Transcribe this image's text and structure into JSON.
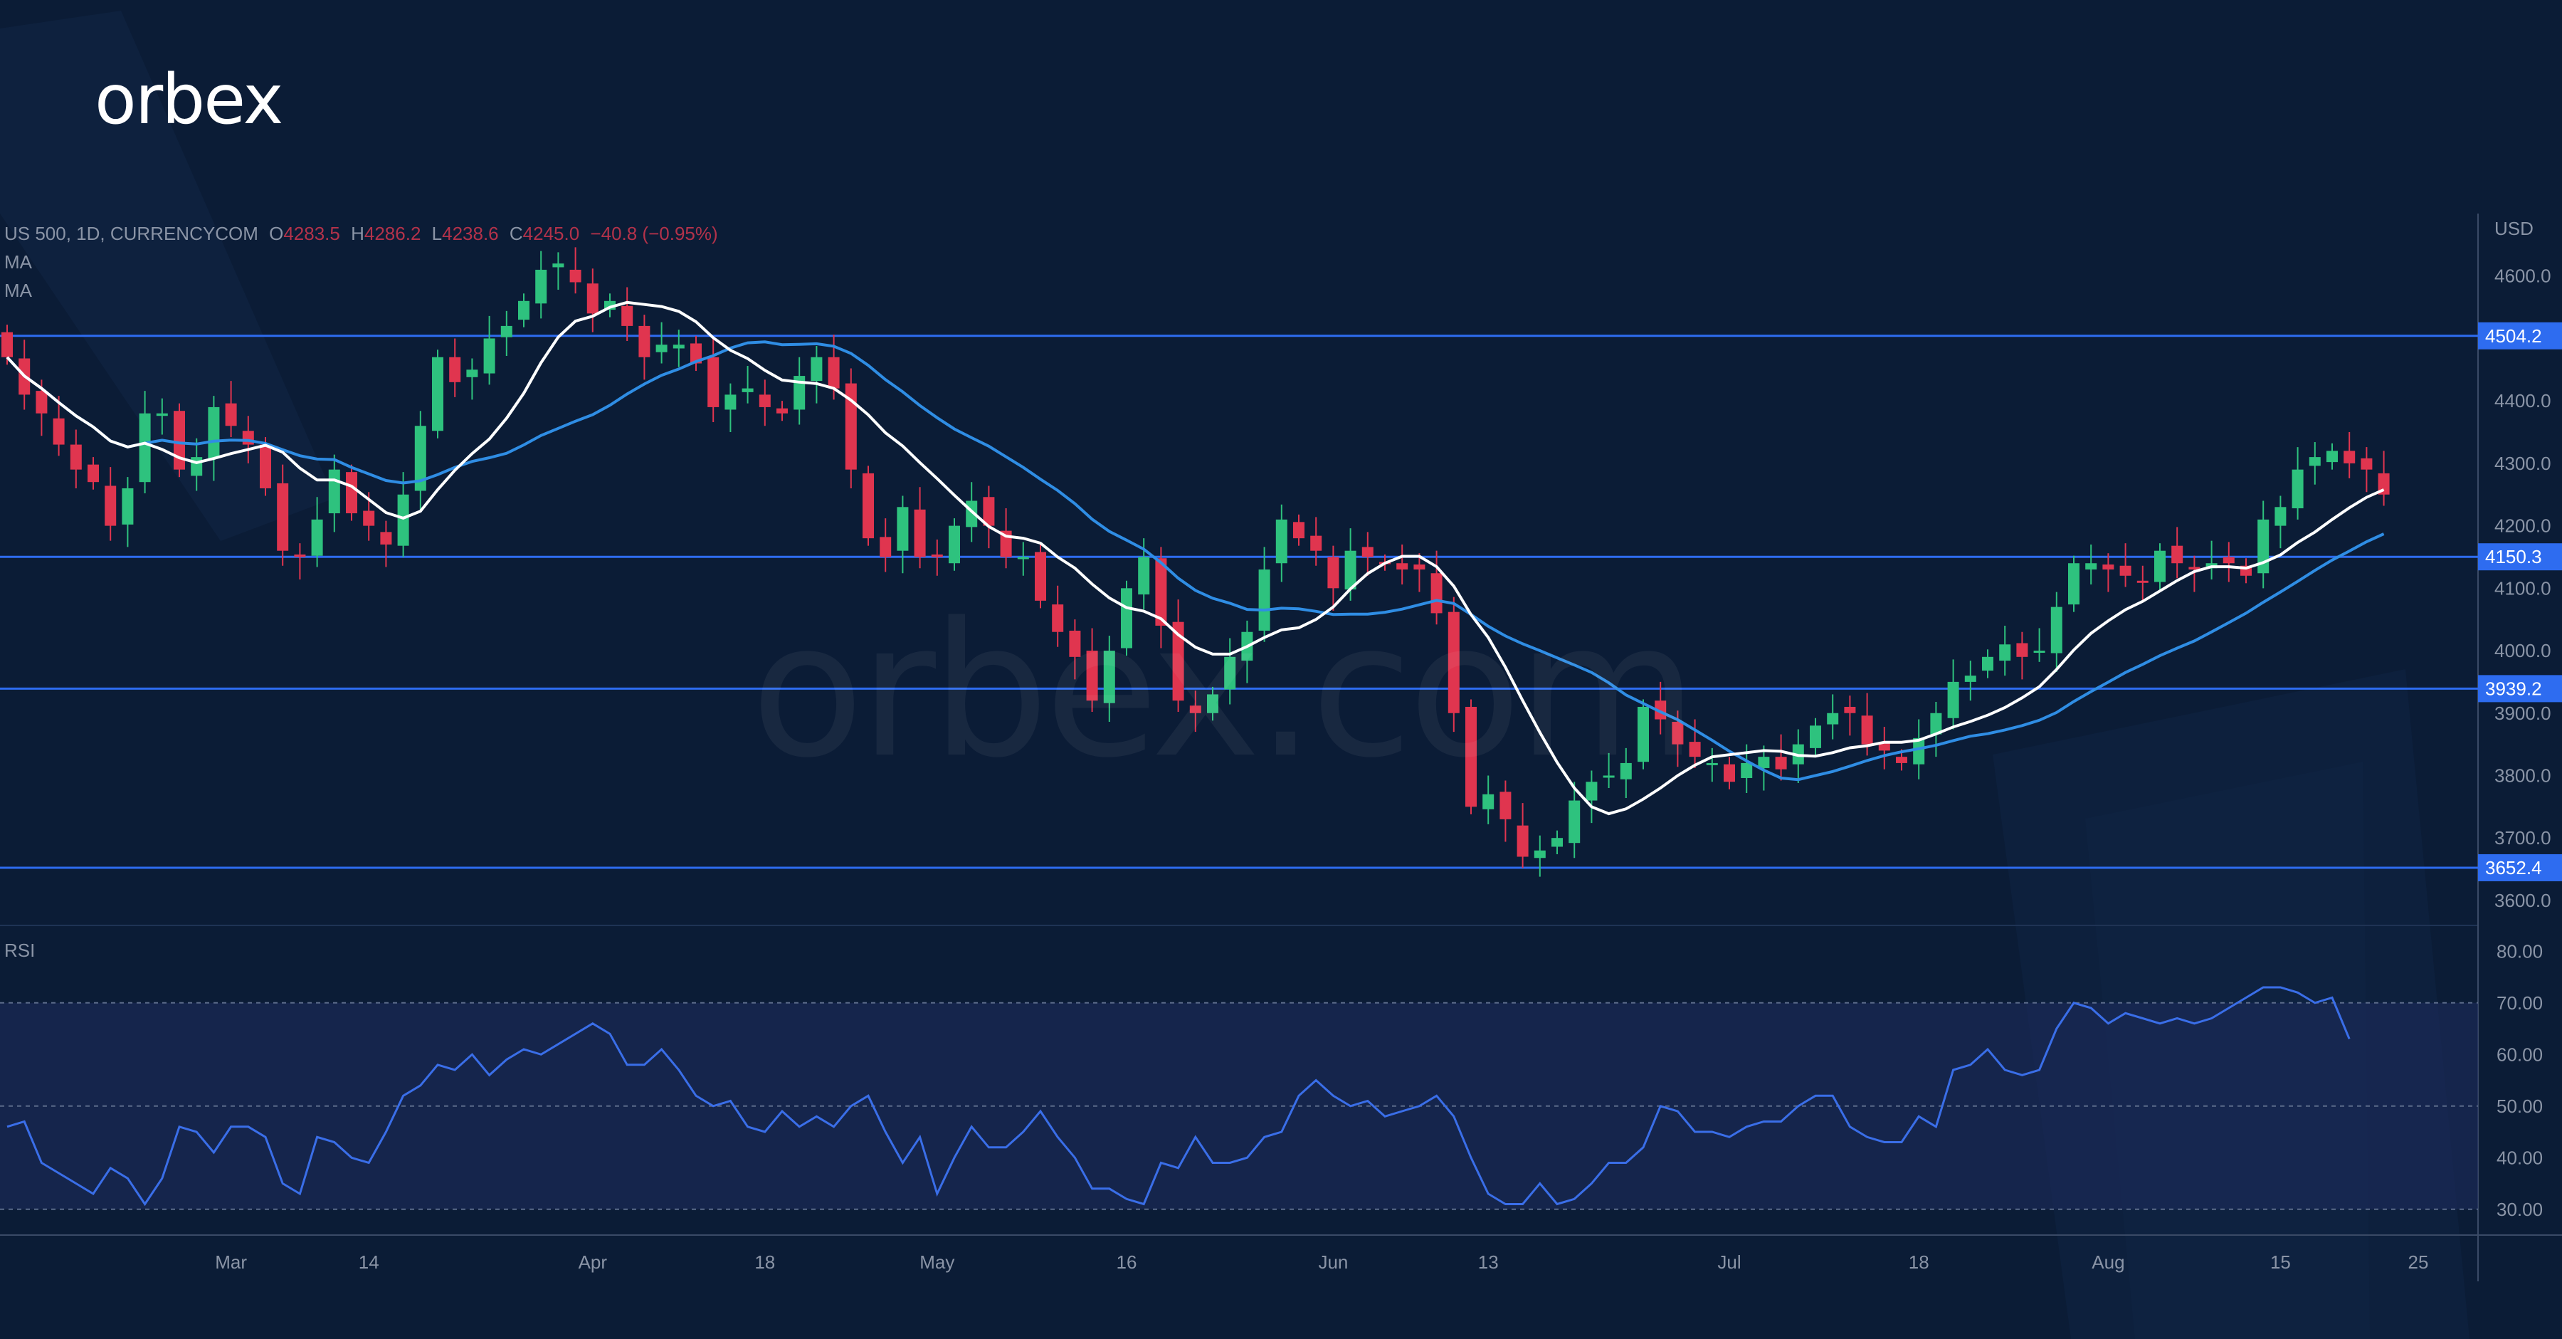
{
  "brand": {
    "logo_text": "orbex",
    "watermark": "orbex.com"
  },
  "legend": {
    "symbol": "US 500, 1D, CURRENCYCOM",
    "open_label": "O",
    "open": "4283.5",
    "high_label": "H",
    "high": "4286.2",
    "low_label": "L",
    "low": "4238.6",
    "close_label": "C",
    "close": "4245.0",
    "change": "−40.8 (−0.95%)",
    "ma1": "MA",
    "ma2": "MA"
  },
  "rsi_label": "RSI",
  "colors": {
    "background": "#0b1c36",
    "bull": "#2ec27e",
    "bear": "#e0354f",
    "level_line": "#2e6cf0",
    "ma_fast": "#ffffff",
    "ma_slow": "#2f8de4",
    "rsi_line": "#3a6ee8",
    "axis_text": "#8a94a6"
  },
  "chart_data": [
    {
      "type": "candlestick",
      "title": "",
      "currency": "USD",
      "ylim": [
        3560,
        4700
      ],
      "y_ticks": [
        "4600.0",
        "4400.0",
        "4300.0",
        "4200.0",
        "4100.0",
        "4000.0",
        "3900.0",
        "3800.0",
        "3700.0",
        "3600.0"
      ],
      "x_ticks": [
        {
          "label": "Mar",
          "i": 13
        },
        {
          "label": "14",
          "i": 21
        },
        {
          "label": "Apr",
          "i": 34
        },
        {
          "label": "18",
          "i": 44
        },
        {
          "label": "May",
          "i": 54
        },
        {
          "label": "16",
          "i": 65
        },
        {
          "label": "Jun",
          "i": 77
        },
        {
          "label": "13",
          "i": 86
        },
        {
          "label": "Jul",
          "i": 100
        },
        {
          "label": "18",
          "i": 111
        },
        {
          "label": "Aug",
          "i": 122
        },
        {
          "label": "15",
          "i": 132
        },
        {
          "label": "25",
          "i": 140
        }
      ],
      "levels": [
        "4504.2",
        "4150.3",
        "3939.2",
        "3652.4"
      ],
      "moving_averages": [
        "MA",
        "MA"
      ],
      "closes": [
        4470,
        4410,
        4380,
        4330,
        4290,
        4270,
        4200,
        4260,
        4380,
        4380,
        4290,
        4310,
        4390,
        4360,
        4330,
        4260,
        4160,
        4150,
        4210,
        4290,
        4220,
        4200,
        4170,
        4250,
        4360,
        4470,
        4430,
        4450,
        4500,
        4520,
        4560,
        4610,
        4620,
        4590,
        4540,
        4560,
        4520,
        4470,
        4490,
        4490,
        4460,
        4390,
        4410,
        4420,
        4390,
        4380,
        4440,
        4470,
        4420,
        4290,
        4180,
        4150,
        4230,
        4150,
        4150,
        4200,
        4240,
        4200,
        4150,
        4150,
        4080,
        4030,
        3990,
        3920,
        4000,
        4100,
        4150,
        4040,
        3920,
        3900,
        3930,
        3990,
        4030,
        4130,
        4210,
        4180,
        4160,
        4100,
        4160,
        4150,
        4140,
        4130,
        4130,
        4060,
        3900,
        3750,
        3770,
        3730,
        3670,
        3680,
        3700,
        3760,
        3790,
        3800,
        3820,
        3910,
        3890,
        3850,
        3830,
        3820,
        3790,
        3820,
        3830,
        3810,
        3850,
        3880,
        3900,
        3900,
        3850,
        3840,
        3820,
        3860,
        3900,
        3950,
        3960,
        3990,
        4010,
        3990,
        4000,
        4070,
        4140,
        4140,
        4130,
        4120,
        4110,
        4160,
        4140,
        4130,
        4140,
        4140,
        4120,
        4210,
        4230,
        4290,
        4310,
        4320,
        4300,
        4290,
        4250
      ],
      "rsi": {
        "ylim": [
          25,
          85
        ],
        "ticks": [
          "80.00",
          "70.00",
          "60.00",
          "50.00",
          "40.00",
          "30.00"
        ],
        "band": [
          30,
          70
        ],
        "mid": 50,
        "values": [
          46,
          47,
          39,
          37,
          35,
          33,
          38,
          36,
          31,
          36,
          46,
          45,
          41,
          46,
          46,
          44,
          35,
          33,
          44,
          43,
          40,
          39,
          45,
          52,
          54,
          58,
          57,
          60,
          56,
          59,
          61,
          60,
          62,
          64,
          66,
          64,
          58,
          58,
          61,
          57,
          52,
          50,
          51,
          46,
          45,
          49,
          46,
          48,
          46,
          50,
          52,
          45,
          39,
          44,
          33,
          40,
          46,
          42,
          42,
          45,
          49,
          44,
          40,
          34,
          34,
          32,
          31,
          39,
          38,
          44,
          39,
          39,
          40,
          44,
          45,
          52,
          55,
          52,
          50,
          51,
          48,
          49,
          50,
          52,
          48,
          40,
          33,
          31,
          31,
          35,
          31,
          32,
          35,
          39,
          39,
          42,
          50,
          49,
          45,
          45,
          44,
          46,
          47,
          47,
          50,
          52,
          52,
          46,
          44,
          43,
          43,
          48,
          46,
          57,
          58,
          61,
          57,
          56,
          57,
          65,
          70,
          69,
          66,
          68,
          67,
          66,
          67,
          66,
          67,
          69,
          71,
          73,
          73,
          72,
          70,
          71,
          63
        ]
      }
    }
  ]
}
